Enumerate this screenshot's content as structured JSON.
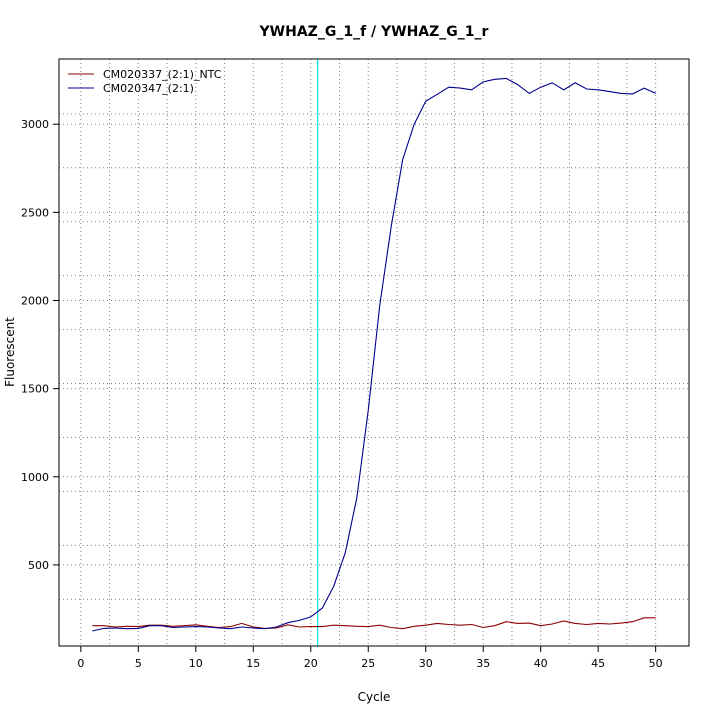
{
  "chart_data": {
    "type": "line",
    "title": "YWHAZ_G_1_f / YWHAZ_G_1_r",
    "xlabel": "Cycle",
    "ylabel": "Fluorescent",
    "xlim": [
      -1.9,
      52.9
    ],
    "ylim": [
      40,
      3370
    ],
    "x_ticks": [
      0,
      5,
      10,
      15,
      20,
      25,
      30,
      35,
      40,
      45,
      50
    ],
    "y_ticks": [
      500,
      1000,
      1500,
      2000,
      2500,
      3000
    ],
    "x_grid": [
      2.5,
      7.5,
      12.5,
      17.5,
      22.5,
      27.5,
      32.5,
      37.5,
      42.5,
      47.5
    ],
    "y_grid": [
      305,
      611,
      917,
      1223,
      1529,
      1835,
      2141,
      2447,
      2753,
      3059
    ],
    "grid": true,
    "legend_position": "top-left",
    "threshold_x": 20.6,
    "threshold_color": "#00e5ee",
    "x": [
      1,
      2,
      3,
      4,
      5,
      6,
      7,
      8,
      9,
      10,
      11,
      12,
      13,
      14,
      15,
      16,
      17,
      18,
      19,
      20,
      21,
      22,
      23,
      24,
      25,
      26,
      27,
      28,
      29,
      30,
      31,
      32,
      33,
      34,
      35,
      36,
      37,
      38,
      39,
      40,
      41,
      42,
      43,
      44,
      45,
      46,
      47,
      48,
      49,
      50
    ],
    "series": [
      {
        "name": "CM020337_(2:1)_NTC",
        "color": "#8b0000",
        "values": [
          155,
          155,
          148,
          152,
          150,
          158,
          158,
          152,
          155,
          160,
          152,
          145,
          150,
          168,
          148,
          140,
          142,
          160,
          148,
          150,
          150,
          158,
          155,
          152,
          150,
          158,
          145,
          138,
          152,
          158,
          168,
          162,
          158,
          162,
          145,
          155,
          178,
          168,
          170,
          155,
          165,
          182,
          168,
          162,
          168,
          165,
          170,
          178,
          200,
          200
        ]
      },
      {
        "name": "CM020347_(2:1)",
        "color": "#00008b",
        "values": [
          125,
          140,
          142,
          138,
          140,
          155,
          155,
          145,
          148,
          150,
          148,
          142,
          138,
          148,
          142,
          138,
          148,
          172,
          185,
          205,
          255,
          380,
          570,
          880,
          1380,
          1970,
          2420,
          2800,
          3000,
          3130,
          3170,
          3210,
          3205,
          3195,
          3240,
          3255,
          3260,
          3225,
          3175,
          3210,
          3235,
          3195,
          3235,
          3200,
          3195,
          3185,
          3175,
          3172,
          3205,
          3175
        ]
      }
    ]
  }
}
